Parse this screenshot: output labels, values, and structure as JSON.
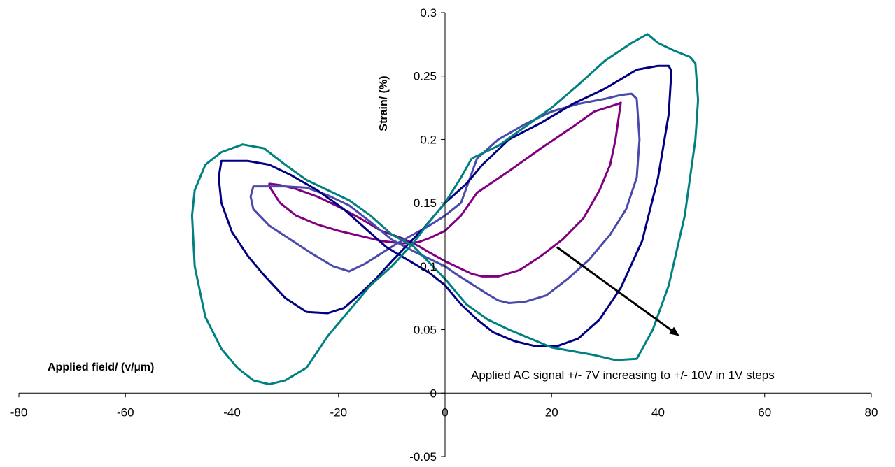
{
  "chart_data": {
    "type": "line",
    "title": "",
    "xlabel": "Applied field/ (v/µm)",
    "ylabel": "Strain/ (%)",
    "xlim": [
      -80,
      80
    ],
    "ylim": [
      -0.05,
      0.3
    ],
    "x_ticks": [
      -80,
      -60,
      -40,
      -20,
      0,
      20,
      40,
      60,
      80
    ],
    "y_ticks": [
      -0.05,
      0,
      0.05,
      0.1,
      0.15,
      0.2,
      0.25,
      0.3
    ],
    "x_tick_labels": [
      "-80",
      "-60",
      "-40",
      "-20",
      "0",
      "20",
      "40",
      "60",
      "80"
    ],
    "y_tick_labels": [
      "-0.05",
      "0",
      "0.05",
      "0.1",
      "0.15",
      "0.2",
      "0.25",
      "0.3"
    ],
    "grid": false,
    "legend": "none",
    "annotation": {
      "text": "Applied AC signal +/- 7V increasing to +/- 10V in 1V steps",
      "arrow_from": [
        21,
        0.115
      ],
      "arrow_to": [
        44,
        0.045
      ]
    },
    "series": [
      {
        "color": "#800080",
        "x": [
          6,
          12,
          18,
          24,
          28,
          31,
          32.5,
          33,
          32,
          31,
          29,
          26,
          22,
          18,
          14,
          10,
          7,
          5,
          3,
          0,
          -3,
          -5,
          -8,
          -12,
          -16,
          -20,
          -24,
          -28,
          -31,
          -33,
          -33,
          -31,
          -28,
          -24,
          -20,
          -16,
          -12,
          -8,
          -5,
          -3,
          0,
          3,
          6
        ],
        "y": [
          0.158,
          0.175,
          0.193,
          0.21,
          0.222,
          0.226,
          0.228,
          0.229,
          0.2,
          0.18,
          0.16,
          0.138,
          0.121,
          0.108,
          0.097,
          0.092,
          0.092,
          0.094,
          0.098,
          0.104,
          0.111,
          0.116,
          0.122,
          0.128,
          0.138,
          0.147,
          0.155,
          0.161,
          0.164,
          0.165,
          0.163,
          0.15,
          0.14,
          0.133,
          0.128,
          0.124,
          0.12,
          0.118,
          0.119,
          0.122,
          0.128,
          0.14,
          0.158
        ]
      },
      {
        "color": "#4a4aab",
        "x": [
          6,
          10,
          15,
          20,
          25,
          30,
          33,
          35,
          36,
          36.5,
          36,
          34,
          31,
          27,
          23,
          19,
          15,
          12,
          10,
          8,
          5,
          2,
          0,
          -3,
          -6,
          -10,
          -14,
          -18,
          -22,
          -26,
          -30,
          -34,
          -36,
          -36.5,
          -36,
          -33,
          -29,
          -25,
          -21,
          -18,
          -15,
          -12,
          -9,
          -6,
          -3,
          0,
          3,
          6
        ],
        "y": [
          0.185,
          0.2,
          0.212,
          0.222,
          0.228,
          0.232,
          0.235,
          0.236,
          0.232,
          0.2,
          0.17,
          0.145,
          0.125,
          0.105,
          0.09,
          0.077,
          0.072,
          0.071,
          0.073,
          0.078,
          0.086,
          0.094,
          0.1,
          0.106,
          0.112,
          0.121,
          0.135,
          0.148,
          0.156,
          0.162,
          0.163,
          0.163,
          0.163,
          0.155,
          0.145,
          0.132,
          0.121,
          0.11,
          0.1,
          0.096,
          0.102,
          0.11,
          0.118,
          0.125,
          0.132,
          0.14,
          0.15,
          0.185
        ]
      },
      {
        "color": "#000080",
        "x": [
          7,
          12,
          18,
          24,
          30,
          36,
          40,
          42,
          42.5,
          42,
          40,
          37,
          33,
          29,
          25,
          21,
          17,
          13,
          9,
          6,
          3,
          0,
          -3,
          -7,
          -11,
          -15,
          -19,
          -24,
          -29,
          -33,
          -37,
          -40,
          -42,
          -42.5,
          -42,
          -40,
          -37,
          -34,
          -30,
          -26,
          -22,
          -19,
          -16,
          -13,
          -10,
          -7,
          -4,
          0,
          4,
          7
        ],
        "y": [
          0.18,
          0.2,
          0.213,
          0.228,
          0.24,
          0.255,
          0.258,
          0.258,
          0.254,
          0.22,
          0.17,
          0.12,
          0.083,
          0.058,
          0.043,
          0.037,
          0.037,
          0.041,
          0.048,
          0.058,
          0.07,
          0.085,
          0.095,
          0.105,
          0.115,
          0.13,
          0.145,
          0.16,
          0.172,
          0.18,
          0.183,
          0.183,
          0.183,
          0.17,
          0.15,
          0.127,
          0.108,
          0.093,
          0.075,
          0.064,
          0.063,
          0.067,
          0.078,
          0.09,
          0.104,
          0.117,
          0.13,
          0.15,
          0.165,
          0.18
        ]
      },
      {
        "color": "#008080",
        "x": [
          5,
          10,
          15,
          20,
          25,
          30,
          35,
          38,
          40,
          43,
          46,
          47,
          47.5,
          47,
          45,
          42,
          39,
          36,
          32,
          28,
          24,
          20,
          16,
          12,
          8,
          4,
          0,
          -3,
          -6,
          -10,
          -14,
          -18,
          -22,
          -26,
          -30,
          -34,
          -38,
          -42,
          -45,
          -47,
          -47.5,
          -47,
          -45,
          -42,
          -39,
          -36,
          -33,
          -30,
          -26,
          -22,
          -18,
          -14,
          -10,
          -6,
          -3,
          0,
          3,
          5
        ],
        "y": [
          0.185,
          0.195,
          0.21,
          0.225,
          0.243,
          0.262,
          0.276,
          0.283,
          0.276,
          0.27,
          0.265,
          0.26,
          0.231,
          0.2,
          0.14,
          0.085,
          0.05,
          0.027,
          0.026,
          0.03,
          0.033,
          0.036,
          0.043,
          0.05,
          0.058,
          0.07,
          0.09,
          0.103,
          0.116,
          0.125,
          0.14,
          0.152,
          0.16,
          0.168,
          0.18,
          0.193,
          0.196,
          0.19,
          0.18,
          0.16,
          0.14,
          0.1,
          0.06,
          0.035,
          0.02,
          0.01,
          0.007,
          0.01,
          0.02,
          0.045,
          0.065,
          0.085,
          0.1,
          0.118,
          0.135,
          0.15,
          0.17,
          0.185
        ]
      }
    ]
  }
}
